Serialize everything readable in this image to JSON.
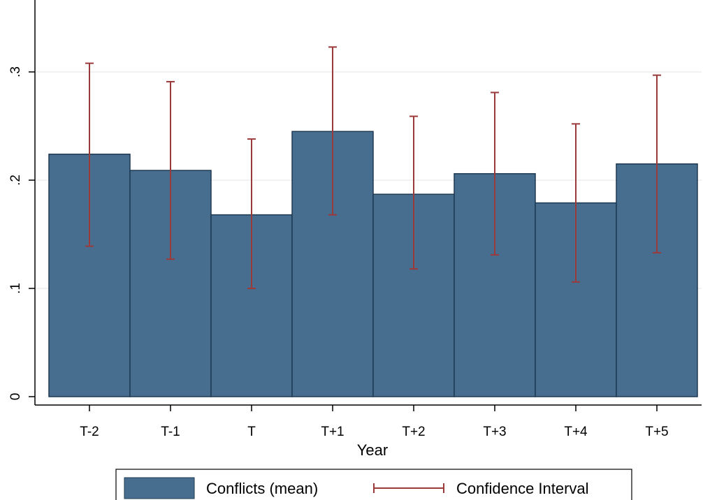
{
  "chart_data": {
    "type": "bar",
    "xlabel": "Year",
    "ylabel": "",
    "categories": [
      "T-2",
      "T-1",
      "T",
      "T+1",
      "T+2",
      "T+3",
      "T+4",
      "T+5"
    ],
    "series": [
      {
        "name": "Conflicts (mean)",
        "values": [
          0.224,
          0.209,
          0.168,
          0.245,
          0.187,
          0.206,
          0.179,
          0.215
        ]
      }
    ],
    "ci": {
      "name": "Confidence Interval",
      "lower": [
        0.139,
        0.127,
        0.1,
        0.168,
        0.118,
        0.131,
        0.106,
        0.133
      ],
      "upper": [
        0.308,
        0.291,
        0.238,
        0.323,
        0.259,
        0.281,
        0.252,
        0.297
      ]
    },
    "yticks": [
      0,
      0.1,
      0.2,
      0.3
    ],
    "ytick_labels": [
      "0",
      ".1",
      ".2",
      ".3"
    ],
    "ylim": [
      0,
      0.35
    ],
    "grid": true,
    "legend_position": "bottom",
    "colors": {
      "bar": "#476d8f",
      "bar_edge": "#1e3a52",
      "ci": "#9b3a3a",
      "grid": "#e6e9ec"
    }
  }
}
